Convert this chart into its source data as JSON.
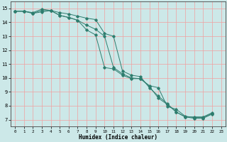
{
  "xlabel": "Humidex (Indice chaleur)",
  "bg_color": "#cce8e8",
  "line_color": "#2e7d6e",
  "grid_color": "#f0a0a0",
  "xlim": [
    -0.5,
    23.5
  ],
  "ylim": [
    6.5,
    15.5
  ],
  "xticks": [
    0,
    1,
    2,
    3,
    4,
    5,
    6,
    7,
    8,
    9,
    10,
    11,
    12,
    13,
    14,
    15,
    16,
    17,
    18,
    19,
    20,
    21,
    22,
    23
  ],
  "yticks": [
    7,
    8,
    9,
    10,
    11,
    12,
    13,
    14,
    15
  ],
  "series": [
    {
      "points": [
        [
          0,
          14.8
        ],
        [
          1,
          14.8
        ],
        [
          2,
          14.7
        ],
        [
          3,
          14.95
        ],
        [
          4,
          14.85
        ],
        [
          5,
          14.7
        ],
        [
          6,
          14.6
        ],
        [
          7,
          14.45
        ],
        [
          8,
          14.3
        ],
        [
          9,
          14.2
        ],
        [
          10,
          13.2
        ],
        [
          11,
          13.0
        ],
        [
          12,
          10.5
        ],
        [
          13,
          10.2
        ],
        [
          14,
          10.1
        ],
        [
          15,
          9.3
        ],
        [
          16,
          8.7
        ],
        [
          17,
          8.15
        ],
        [
          18,
          7.55
        ],
        [
          19,
          7.2
        ],
        [
          20,
          7.2
        ],
        [
          21,
          7.2
        ],
        [
          22,
          7.5
        ]
      ]
    },
    {
      "points": [
        [
          0,
          14.8
        ],
        [
          1,
          14.8
        ],
        [
          2,
          14.65
        ],
        [
          3,
          14.75
        ],
        [
          4,
          14.85
        ],
        [
          5,
          14.5
        ],
        [
          6,
          14.35
        ],
        [
          7,
          14.15
        ],
        [
          8,
          13.8
        ],
        [
          9,
          13.5
        ],
        [
          10,
          13.0
        ],
        [
          11,
          10.75
        ],
        [
          12,
          10.3
        ],
        [
          13,
          10.0
        ],
        [
          14,
          9.95
        ],
        [
          15,
          9.45
        ],
        [
          16,
          9.3
        ],
        [
          17,
          7.95
        ],
        [
          18,
          7.75
        ],
        [
          19,
          7.25
        ],
        [
          20,
          7.15
        ],
        [
          21,
          7.15
        ],
        [
          22,
          7.45
        ]
      ]
    },
    {
      "points": [
        [
          0,
          14.8
        ],
        [
          1,
          14.8
        ],
        [
          2,
          14.65
        ],
        [
          3,
          14.85
        ],
        [
          4,
          14.85
        ],
        [
          5,
          14.5
        ],
        [
          6,
          14.35
        ],
        [
          7,
          14.15
        ],
        [
          8,
          13.45
        ],
        [
          9,
          13.1
        ],
        [
          10,
          10.75
        ],
        [
          11,
          10.65
        ],
        [
          12,
          10.2
        ],
        [
          13,
          9.95
        ],
        [
          14,
          9.95
        ],
        [
          15,
          9.4
        ],
        [
          16,
          8.55
        ],
        [
          17,
          8.1
        ],
        [
          18,
          7.55
        ],
        [
          19,
          7.2
        ],
        [
          20,
          7.1
        ],
        [
          21,
          7.1
        ],
        [
          22,
          7.4
        ]
      ]
    }
  ]
}
